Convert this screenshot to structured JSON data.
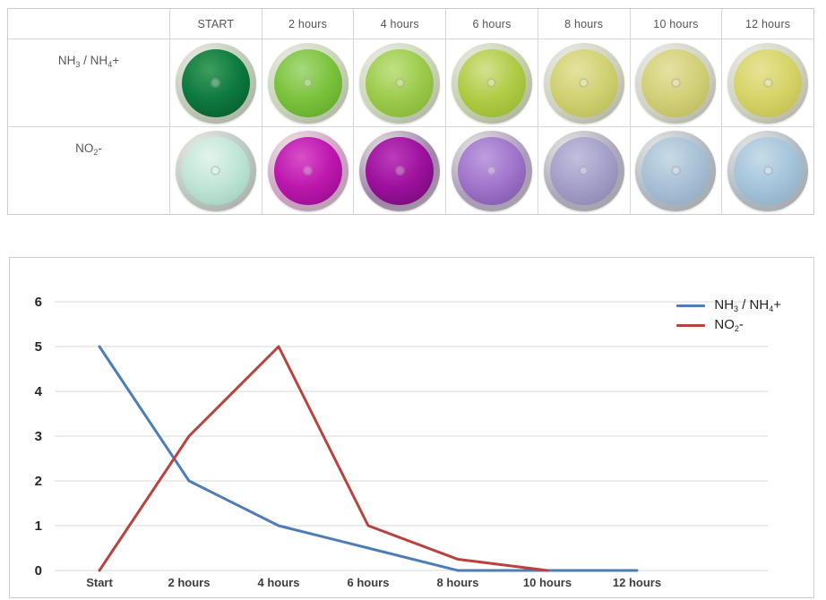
{
  "table": {
    "headers": [
      "START",
      "2 hours",
      "4 hours",
      "6 hours",
      "8 hours",
      "10 hours",
      "12 hours"
    ],
    "rows": [
      {
        "id": "nh3-nh4",
        "label_text": "NH3 / NH4+",
        "label_parts": [
          {
            "t": "NH"
          },
          {
            "t": "3",
            "sub": true
          },
          {
            "t": " / NH"
          },
          {
            "t": "4",
            "sub": true
          },
          {
            "t": "+"
          }
        ],
        "dishes": [
          {
            "time": "START",
            "liq": "#0d7a3e",
            "edge": "#3f9c5e",
            "deep": "#07552b",
            "rim": "#bcc9b3"
          },
          {
            "time": "2 hours",
            "liq": "#7cc23c",
            "edge": "#a6d97e",
            "deep": "#5aa527",
            "rim": "#c6d4b4"
          },
          {
            "time": "4 hours",
            "liq": "#9ccb4b",
            "edge": "#c1e186",
            "deep": "#7fb135",
            "rim": "#c9d4b6"
          },
          {
            "time": "6 hours",
            "liq": "#afcc45",
            "edge": "#d3e18f",
            "deep": "#93b231",
            "rim": "#c2cfa9"
          },
          {
            "time": "8 hours",
            "liq": "#d0d173",
            "edge": "#e4e3a0",
            "deep": "#b7b853",
            "rim": "#cdd0bc"
          },
          {
            "time": "10 hours",
            "liq": "#d2d079",
            "edge": "#e5e1a4",
            "deep": "#bab75a",
            "rim": "#cfd1c1"
          },
          {
            "time": "12 hours",
            "liq": "#d6d468",
            "edge": "#e7e397",
            "deep": "#bebb4c",
            "rim": "#cfd1bf"
          }
        ]
      },
      {
        "id": "no2",
        "label_text": "NO2-",
        "label_parts": [
          {
            "t": "NO"
          },
          {
            "t": "2",
            "sub": true
          },
          {
            "t": "-"
          }
        ],
        "dishes": [
          {
            "time": "START",
            "liq": "#c0e5d6",
            "edge": "#e3f4eb",
            "deep": "#9bccb9",
            "rim": "#b9c6bf"
          },
          {
            "time": "2 hours",
            "liq": "#bd17ae",
            "edge": "#d84fc9",
            "deep": "#8f0c87",
            "rim": "#cf9fc5"
          },
          {
            "time": "4 hours",
            "liq": "#9d109e",
            "edge": "#bc3cba",
            "deep": "#6d0b70",
            "rim": "#a083ab"
          },
          {
            "time": "6 hours",
            "liq": "#a075cb",
            "edge": "#bf9edf",
            "deep": "#7c53a7",
            "rim": "#ab9cba"
          },
          {
            "time": "8 hours",
            "liq": "#a5a0ca",
            "edge": "#c2bedd",
            "deep": "#8882ae",
            "rim": "#aba7b9"
          },
          {
            "time": "10 hours",
            "liq": "#a9c1d6",
            "edge": "#c8dae6",
            "deep": "#8da7bf",
            "rim": "#adb6c2"
          },
          {
            "time": "12 hours",
            "liq": "#a6c4da",
            "edge": "#c6dce9",
            "deep": "#8aabc3",
            "rim": "#aeb8c4"
          }
        ]
      }
    ]
  },
  "chart_data": {
    "type": "line",
    "title": "",
    "xlabel": "",
    "ylabel": "",
    "categories": [
      "Start",
      "2 hours",
      "4 hours",
      "6 hours",
      "8 hours",
      "10 hours",
      "12 hours"
    ],
    "series": [
      {
        "name": "NH3 / NH4+",
        "color": "#4e7cb5",
        "values": [
          5,
          2,
          1,
          0.5,
          0,
          0,
          0
        ],
        "label_parts": [
          {
            "t": "NH"
          },
          {
            "t": "3",
            "sub": true
          },
          {
            "t": " / NH"
          },
          {
            "t": "4",
            "sub": true
          },
          {
            "t": "+"
          }
        ]
      },
      {
        "name": "NO2-",
        "color": "#b8423e",
        "values": [
          0,
          3,
          5,
          1,
          0.25,
          0,
          null
        ],
        "label_parts": [
          {
            "t": "NO"
          },
          {
            "t": "2",
            "sub": true
          },
          {
            "t": "-"
          }
        ]
      }
    ],
    "ylim": [
      0,
      6
    ],
    "yticks": [
      6,
      5,
      4,
      3,
      2,
      1,
      0
    ],
    "grid": true,
    "legend_position": "top-right"
  },
  "colors": {
    "table_border": "#cccccc",
    "grid_line": "#d9d9d9",
    "header_text": "#555555",
    "axis_text": "#262626"
  }
}
